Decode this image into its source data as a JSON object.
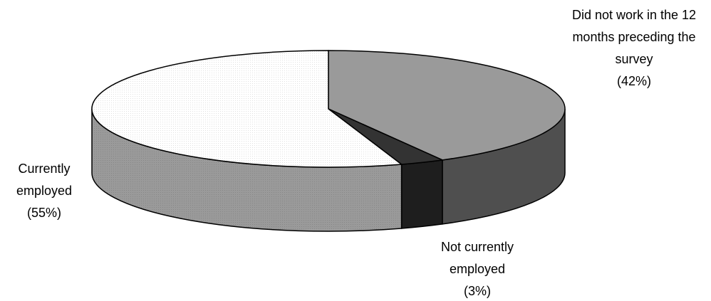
{
  "chart_data": {
    "type": "pie3d",
    "categories": [
      "Did not work in the 12 months preceding the survey",
      "Not currently employed",
      "Currently employed"
    ],
    "values": [
      42,
      3,
      55
    ],
    "value_labels": [
      "(42%)",
      "(3%)",
      "(55%)"
    ],
    "colors": [
      "#9a9a9a",
      "#333333",
      "#ffffff"
    ],
    "side_colors": [
      "#4f4f4f",
      "#1e1e1e",
      "#9a9a9a"
    ]
  }
}
